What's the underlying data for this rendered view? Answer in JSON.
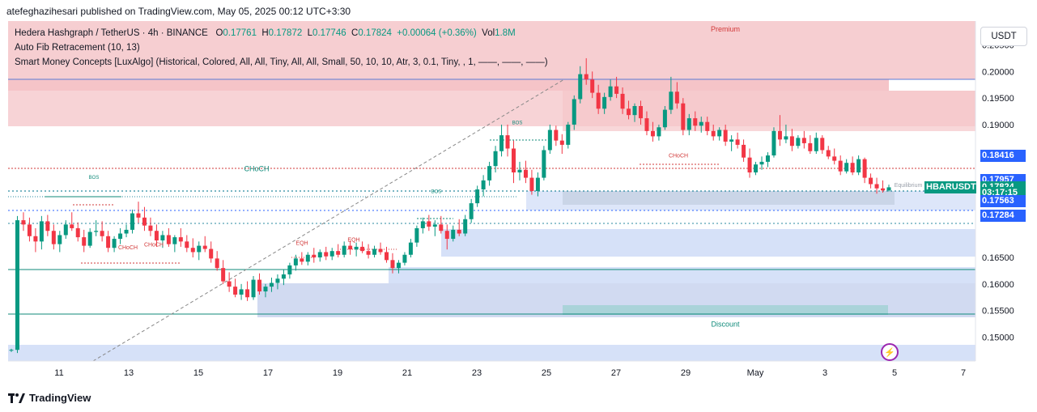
{
  "header": {
    "author_line": "atefeghazihesari published on TradingView.com, May 05, 2025 00:12 UTC+3:30"
  },
  "legend": {
    "title": "Hedera Hashgraph / TetherUS · 4h · BINANCE",
    "o_label": "O",
    "o_value": "0.17761",
    "h_label": "H",
    "h_value": "0.17872",
    "l_label": "L",
    "l_value": "0.17746",
    "c_label": "C",
    "c_value": "0.17824",
    "change": "+0.00064 (+0.36%)",
    "vol_label": "Vol",
    "vol_value": "1.8M",
    "indicator1": "Auto Fib Retracement (10, 13)",
    "indicator2": "Smart Money Concepts [LuxAlgo] (Historical, Colored, All, All, Tiny, All, All, Small, 50, 10, 10, Atr, 3, 0.1, Tiny, , 1, ——, ——, ——)"
  },
  "currency": "USDT",
  "footer": {
    "brand": "TradingView"
  },
  "colors": {
    "up": "#089981",
    "down": "#f23645",
    "premium": "#f5c6c9",
    "discount": "#cfdcf7",
    "blue": "#2962ff"
  },
  "chart_data": {
    "type": "candlestick",
    "symbol": "HBARUSDT",
    "timeframe": "4h",
    "ylim": [
      0.1455,
      0.2095
    ],
    "y_ticks": [
      "0.20500",
      "0.20000",
      "0.19500",
      "0.19000",
      "0.16500",
      "0.16000",
      "0.15500",
      "0.15000"
    ],
    "x_ticks": [
      "11",
      "13",
      "15",
      "17",
      "19",
      "21",
      "23",
      "25",
      "27",
      "29",
      "May",
      "3",
      "5",
      "7"
    ],
    "price_labels": [
      {
        "text": "0.18416",
        "value": 0.18416,
        "color": "#2962ff"
      },
      {
        "text": "0.17957",
        "value": 0.17957,
        "color": "#2962ff"
      },
      {
        "text": "HBARUSDT",
        "value": 0.17824,
        "color": "#089981"
      },
      {
        "text": "0.17824",
        "value": 0.17824,
        "color": "#089981"
      },
      {
        "text": "03:17:15",
        "value": 0.1771,
        "color": "#089981"
      },
      {
        "text": "0.17563",
        "value": 0.17563,
        "color": "#2962ff"
      },
      {
        "text": "0.17284",
        "value": 0.17284,
        "color": "#2962ff"
      }
    ],
    "annotations": [
      {
        "text": "Premium",
        "value": 0.2075
      },
      {
        "text": "Discount",
        "value": 0.152
      },
      {
        "text": "CHoCH",
        "value": 0.1812
      },
      {
        "text": "CHoCH",
        "value": 0.1665
      },
      {
        "text": "CHoCH",
        "value": 0.1671
      },
      {
        "text": "CHoCH",
        "value": 0.1838
      },
      {
        "text": "BOS",
        "value": 0.1798
      },
      {
        "text": "BOS",
        "value": 0.1901
      },
      {
        "text": "BOS",
        "value": 0.1771
      },
      {
        "text": "EQH",
        "value": 0.1674
      },
      {
        "text": "EQH",
        "value": 0.168
      },
      {
        "text": "Equilibrium",
        "value": 0.1783
      }
    ],
    "candles": [
      [
        0.1475,
        0.1478,
        0.1472,
        0.1476
      ],
      [
        0.1476,
        0.1728,
        0.147,
        0.172
      ],
      [
        0.172,
        0.1735,
        0.17,
        0.1712
      ],
      [
        0.1712,
        0.1725,
        0.168,
        0.169
      ],
      [
        0.169,
        0.1705,
        0.166,
        0.168
      ],
      [
        0.168,
        0.1728,
        0.1665,
        0.1718
      ],
      [
        0.1718,
        0.173,
        0.169,
        0.17
      ],
      [
        0.17,
        0.1712,
        0.1665,
        0.1675
      ],
      [
        0.1675,
        0.17,
        0.166,
        0.1692
      ],
      [
        0.1692,
        0.172,
        0.1685,
        0.1712
      ],
      [
        0.1712,
        0.1735,
        0.17,
        0.1705
      ],
      [
        0.1705,
        0.1716,
        0.168,
        0.1688
      ],
      [
        0.1688,
        0.1702,
        0.166,
        0.1672
      ],
      [
        0.1672,
        0.1705,
        0.1668,
        0.1698
      ],
      [
        0.1698,
        0.172,
        0.169,
        0.17
      ],
      [
        0.17,
        0.1718,
        0.168,
        0.169
      ],
      [
        0.169,
        0.17,
        0.166,
        0.1668
      ],
      [
        0.1668,
        0.169,
        0.166,
        0.1685
      ],
      [
        0.1685,
        0.1705,
        0.1675,
        0.1695
      ],
      [
        0.1695,
        0.1712,
        0.1688,
        0.1702
      ],
      [
        0.1702,
        0.174,
        0.1695,
        0.1733
      ],
      [
        0.1733,
        0.1755,
        0.1715,
        0.1725
      ],
      [
        0.1725,
        0.1745,
        0.17,
        0.171
      ],
      [
        0.171,
        0.1725,
        0.169,
        0.17
      ],
      [
        0.17,
        0.1712,
        0.167,
        0.1682
      ],
      [
        0.1682,
        0.17,
        0.1668,
        0.1692
      ],
      [
        0.1692,
        0.1705,
        0.167,
        0.1675
      ],
      [
        0.1675,
        0.1692,
        0.166,
        0.1688
      ],
      [
        0.1688,
        0.1705,
        0.167,
        0.168
      ],
      [
        0.168,
        0.1692,
        0.166,
        0.1668
      ],
      [
        0.1668,
        0.1686,
        0.165,
        0.166
      ],
      [
        0.166,
        0.168,
        0.1645,
        0.1672
      ],
      [
        0.1672,
        0.169,
        0.166,
        0.1666
      ],
      [
        0.1666,
        0.168,
        0.164,
        0.1648
      ],
      [
        0.1648,
        0.1662,
        0.1625,
        0.163
      ],
      [
        0.163,
        0.1645,
        0.16,
        0.1605
      ],
      [
        0.1605,
        0.1622,
        0.1585,
        0.1595
      ],
      [
        0.1595,
        0.161,
        0.1575,
        0.158
      ],
      [
        0.158,
        0.16,
        0.157,
        0.159
      ],
      [
        0.159,
        0.1605,
        0.1568,
        0.1575
      ],
      [
        0.1575,
        0.1615,
        0.157,
        0.1608
      ],
      [
        0.1608,
        0.162,
        0.158,
        0.1586
      ],
      [
        0.1586,
        0.16,
        0.1575,
        0.1595
      ],
      [
        0.1595,
        0.1612,
        0.1585,
        0.1602
      ],
      [
        0.1602,
        0.1618,
        0.159,
        0.161
      ],
      [
        0.161,
        0.1628,
        0.1598,
        0.1618
      ],
      [
        0.1618,
        0.164,
        0.161,
        0.1635
      ],
      [
        0.1635,
        0.1655,
        0.1625,
        0.1648
      ],
      [
        0.1648,
        0.166,
        0.1636,
        0.1642
      ],
      [
        0.1642,
        0.166,
        0.1635,
        0.1655
      ],
      [
        0.1655,
        0.1668,
        0.164,
        0.165
      ],
      [
        0.165,
        0.1665,
        0.1642,
        0.166
      ],
      [
        0.166,
        0.167,
        0.1645,
        0.1652
      ],
      [
        0.1652,
        0.1668,
        0.1645,
        0.1662
      ],
      [
        0.1662,
        0.1675,
        0.165,
        0.1655
      ],
      [
        0.1655,
        0.168,
        0.165,
        0.1672
      ],
      [
        0.1672,
        0.1682,
        0.1655,
        0.1665
      ],
      [
        0.1665,
        0.1678,
        0.1652,
        0.167
      ],
      [
        0.167,
        0.168,
        0.1658,
        0.1662
      ],
      [
        0.1662,
        0.1675,
        0.1648,
        0.1655
      ],
      [
        0.1655,
        0.1672,
        0.165,
        0.1666
      ],
      [
        0.1666,
        0.1678,
        0.1655,
        0.166
      ],
      [
        0.166,
        0.167,
        0.164,
        0.1645
      ],
      [
        0.1645,
        0.1658,
        0.162,
        0.163
      ],
      [
        0.163,
        0.1645,
        0.162,
        0.164
      ],
      [
        0.164,
        0.166,
        0.1635,
        0.1655
      ],
      [
        0.1655,
        0.1685,
        0.165,
        0.1678
      ],
      [
        0.1678,
        0.171,
        0.167,
        0.1705
      ],
      [
        0.1705,
        0.1725,
        0.1695,
        0.1718
      ],
      [
        0.1718,
        0.173,
        0.17,
        0.1708
      ],
      [
        0.1708,
        0.172,
        0.169,
        0.1712
      ],
      [
        0.1712,
        0.1728,
        0.1695,
        0.17
      ],
      [
        0.17,
        0.1712,
        0.1665,
        0.1685
      ],
      [
        0.1685,
        0.171,
        0.168,
        0.1702
      ],
      [
        0.1702,
        0.1722,
        0.169,
        0.1695
      ],
      [
        0.1695,
        0.173,
        0.169,
        0.1722
      ],
      [
        0.1722,
        0.176,
        0.1715,
        0.1752
      ],
      [
        0.1752,
        0.1785,
        0.1745,
        0.1778
      ],
      [
        0.1778,
        0.1805,
        0.1765,
        0.1795
      ],
      [
        0.1795,
        0.183,
        0.1785,
        0.1822
      ],
      [
        0.1822,
        0.186,
        0.181,
        0.185
      ],
      [
        0.185,
        0.19,
        0.184,
        0.188
      ],
      [
        0.188,
        0.19,
        0.184,
        0.1855
      ],
      [
        0.1855,
        0.187,
        0.179,
        0.181
      ],
      [
        0.181,
        0.183,
        0.1795,
        0.1815
      ],
      [
        0.1815,
        0.1832,
        0.179,
        0.18
      ],
      [
        0.18,
        0.1815,
        0.1768,
        0.1775
      ],
      [
        0.1775,
        0.181,
        0.1765,
        0.18
      ],
      [
        0.18,
        0.186,
        0.1795,
        0.1852
      ],
      [
        0.1852,
        0.19,
        0.1845,
        0.189
      ],
      [
        0.189,
        0.1898,
        0.186,
        0.187
      ],
      [
        0.187,
        0.1882,
        0.1845,
        0.1862
      ],
      [
        0.1862,
        0.1905,
        0.1855,
        0.19
      ],
      [
        0.19,
        0.1955,
        0.189,
        0.1948
      ],
      [
        0.1948,
        0.201,
        0.194,
        0.1995
      ],
      [
        0.1995,
        0.2025,
        0.1975,
        0.1985
      ],
      [
        0.1985,
        0.2,
        0.195,
        0.196
      ],
      [
        0.196,
        0.1975,
        0.192,
        0.193
      ],
      [
        0.193,
        0.196,
        0.192,
        0.1952
      ],
      [
        0.1952,
        0.1985,
        0.1945,
        0.1972
      ],
      [
        0.1972,
        0.199,
        0.195,
        0.1958
      ],
      [
        0.1958,
        0.197,
        0.192,
        0.193
      ],
      [
        0.193,
        0.1945,
        0.191,
        0.1918
      ],
      [
        0.1918,
        0.194,
        0.1905,
        0.1935
      ],
      [
        0.1935,
        0.1945,
        0.19,
        0.1912
      ],
      [
        0.1912,
        0.1925,
        0.188,
        0.1888
      ],
      [
        0.1888,
        0.1905,
        0.1868,
        0.1878
      ],
      [
        0.1878,
        0.19,
        0.187,
        0.1895
      ],
      [
        0.1895,
        0.1935,
        0.189,
        0.1928
      ],
      [
        0.1928,
        0.199,
        0.192,
        0.1962
      ],
      [
        0.1962,
        0.198,
        0.193,
        0.194
      ],
      [
        0.194,
        0.195,
        0.188,
        0.189
      ],
      [
        0.189,
        0.192,
        0.188,
        0.1912
      ],
      [
        0.1912,
        0.1925,
        0.1888,
        0.1898
      ],
      [
        0.1898,
        0.1915,
        0.1885,
        0.1905
      ],
      [
        0.1905,
        0.1915,
        0.188,
        0.1888
      ],
      [
        0.1888,
        0.19,
        0.187,
        0.1878
      ],
      [
        0.1878,
        0.1895,
        0.187,
        0.189
      ],
      [
        0.189,
        0.19,
        0.186,
        0.1868
      ],
      [
        0.1868,
        0.188,
        0.185,
        0.1872
      ],
      [
        0.1872,
        0.1885,
        0.1855,
        0.1862
      ],
      [
        0.1862,
        0.1872,
        0.183,
        0.1838
      ],
      [
        0.1838,
        0.1855,
        0.18,
        0.181
      ],
      [
        0.181,
        0.183,
        0.1805,
        0.1825
      ],
      [
        0.1825,
        0.184,
        0.1815,
        0.183
      ],
      [
        0.183,
        0.1848,
        0.182,
        0.1842
      ],
      [
        0.1842,
        0.1895,
        0.1838,
        0.1888
      ],
      [
        0.1888,
        0.1918,
        0.186,
        0.1872
      ],
      [
        0.1872,
        0.19,
        0.1865,
        0.1878
      ],
      [
        0.1878,
        0.1892,
        0.185,
        0.186
      ],
      [
        0.186,
        0.188,
        0.1855,
        0.1875
      ],
      [
        0.1875,
        0.1888,
        0.1855,
        0.1865
      ],
      [
        0.1865,
        0.188,
        0.1845,
        0.185
      ],
      [
        0.185,
        0.1885,
        0.1845,
        0.1875
      ],
      [
        0.1875,
        0.188,
        0.1845,
        0.1852
      ],
      [
        0.1852,
        0.186,
        0.1835,
        0.184
      ],
      [
        0.184,
        0.1855,
        0.1825,
        0.1832
      ],
      [
        0.1832,
        0.1842,
        0.1805,
        0.1812
      ],
      [
        0.1812,
        0.1835,
        0.1808,
        0.1828
      ],
      [
        0.1828,
        0.184,
        0.1805,
        0.181
      ],
      [
        0.181,
        0.1842,
        0.1805,
        0.1835
      ],
      [
        0.1835,
        0.1838,
        0.179,
        0.18
      ],
      [
        0.18,
        0.1808,
        0.178,
        0.1788
      ],
      [
        0.1788,
        0.18,
        0.177,
        0.178
      ],
      [
        0.178,
        0.1795,
        0.1772,
        0.1776
      ],
      [
        0.1776,
        0.1787,
        0.1774,
        0.1782
      ]
    ]
  }
}
